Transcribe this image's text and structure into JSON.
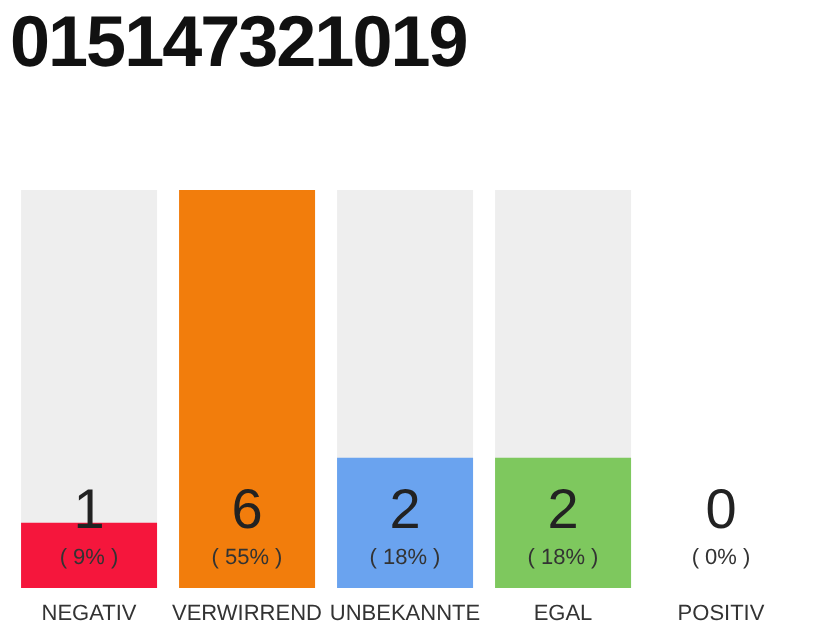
{
  "chart_data": {
    "type": "bar",
    "title": "015147321019",
    "categories": [
      "NEGATIV",
      "VERWIRREND",
      "UNBEKANNTE",
      "EGAL",
      "POSITIV"
    ],
    "values": [
      9,
      55,
      18,
      18,
      0
    ],
    "colors": [
      "#f5163c",
      "#f27d0c",
      "#6aa3ef",
      "#7ec85e",
      "#b0b0b0"
    ],
    "value_labels": [
      "( 9% )",
      "( 55% )",
      "( 18% )",
      "( 18% )",
      "( 0% )"
    ],
    "annotations": [
      "1",
      "6",
      "2",
      "2",
      "0"
    ],
    "tick_labels": "x"
  }
}
